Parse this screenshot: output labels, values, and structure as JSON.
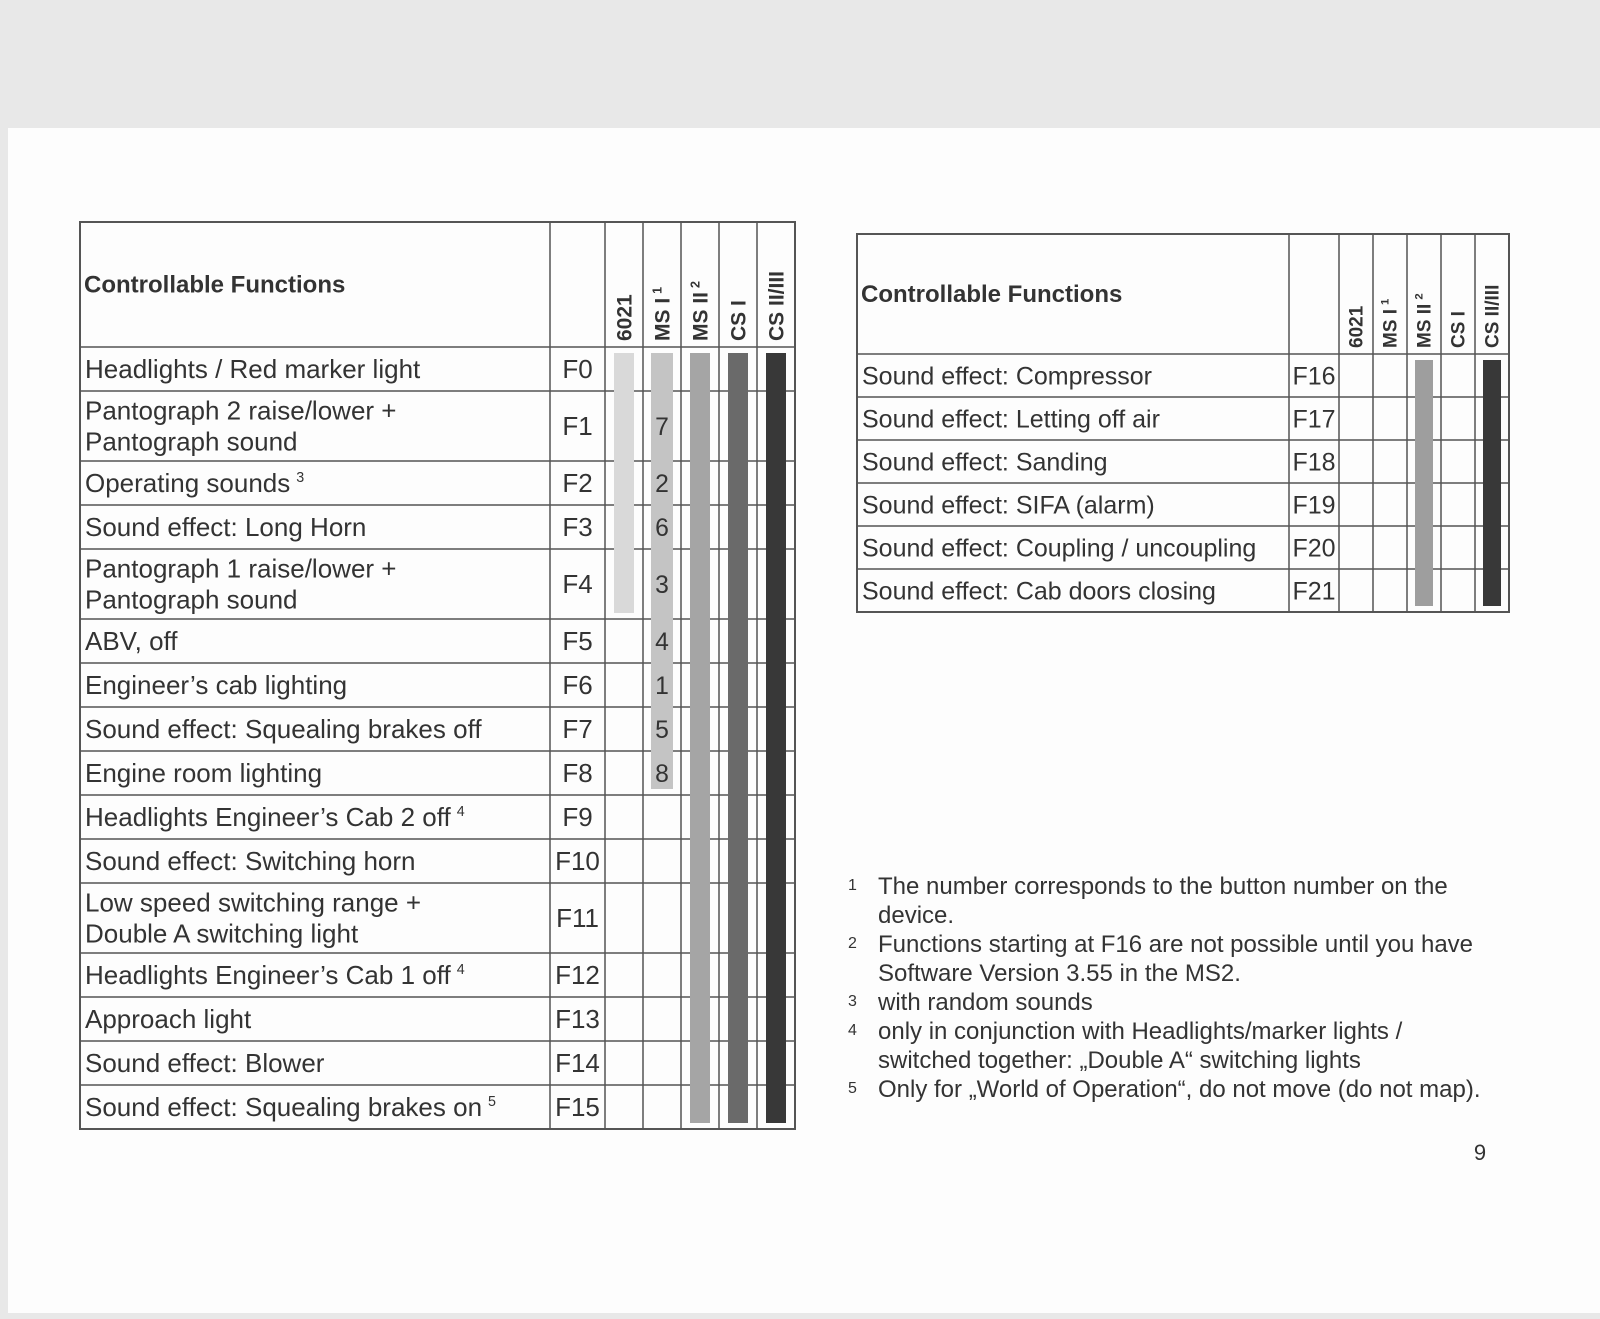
{
  "left_table": {
    "header": "Controllable Functions",
    "columns": [
      {
        "name": "6021"
      },
      {
        "name": "MS I",
        "note": 1
      },
      {
        "name": "MS II",
        "note": 2
      },
      {
        "name": "CS I"
      },
      {
        "name": "CS II/III"
      }
    ],
    "rows": [
      {
        "label": [
          "Headlights / Red marker light"
        ],
        "function": "F0"
      },
      {
        "label": [
          "Pantograph 2 raise/lower +",
          "Pantograph sound"
        ],
        "function": "F1",
        "button": 7
      },
      {
        "label": [
          "Operating sounds"
        ],
        "note": 3,
        "function": "F2",
        "button": 2
      },
      {
        "label": [
          "Sound effect: Long Horn"
        ],
        "function": "F3",
        "button": 6
      },
      {
        "label": [
          "Pantograph 1 raise/lower +",
          "Pantograph sound"
        ],
        "function": "F4",
        "button": 3
      },
      {
        "label": [
          "ABV, off"
        ],
        "function": "F5",
        "button": 4
      },
      {
        "label": [
          "Engineer’s cab lighting"
        ],
        "function": "F6",
        "button": 1
      },
      {
        "label": [
          "Sound effect: Squealing brakes off"
        ],
        "function": "F7",
        "button": 5
      },
      {
        "label": [
          "Engine room lighting"
        ],
        "function": "F8",
        "button": 8
      },
      {
        "label": [
          "Headlights Engineer’s Cab 2 off"
        ],
        "note": 4,
        "function": "F9"
      },
      {
        "label": [
          "Sound effect: Switching horn"
        ],
        "function": "F10"
      },
      {
        "label": [
          "Low speed switching range +",
          "Double A switching light"
        ],
        "function": "F11"
      },
      {
        "label": [
          "Headlights Engineer’s Cab 1 off"
        ],
        "note": 4,
        "function": "F12"
      },
      {
        "label": [
          "Approach light"
        ],
        "function": "F13"
      },
      {
        "label": [
          "Sound effect: Blower"
        ],
        "function": "F14"
      },
      {
        "label": [
          "Sound effect: Squealing brakes on"
        ],
        "note": 5,
        "function": "F15"
      }
    ]
  },
  "right_table": {
    "header": "Controllable Functions",
    "columns": [
      {
        "name": "6021"
      },
      {
        "name": "MS I",
        "note": 1
      },
      {
        "name": "MS II",
        "note": 2
      },
      {
        "name": "CS I"
      },
      {
        "name": "CS II/III"
      }
    ],
    "rows": [
      {
        "label": [
          "Sound effect: Compressor"
        ],
        "function": "F16"
      },
      {
        "label": [
          "Sound effect: Letting off air"
        ],
        "function": "F17"
      },
      {
        "label": [
          "Sound effect: Sanding"
        ],
        "function": "F18"
      },
      {
        "label": [
          "Sound effect: SIFA (alarm)"
        ],
        "function": "F19"
      },
      {
        "label": [
          "Sound effect: Coupling / uncoupling"
        ],
        "function": "F20"
      },
      {
        "label": [
          "Sound effect: Cab doors closing"
        ],
        "function": "F21"
      }
    ]
  },
  "footnotes": [
    {
      "n": 1,
      "text": [
        "The number corresponds to the button number on the",
        "device."
      ]
    },
    {
      "n": 2,
      "text": [
        "Functions starting at F16 are not possible until you have",
        "Software Version 3.55 in the MS2."
      ]
    },
    {
      "n": 3,
      "text": [
        "with random sounds"
      ]
    },
    {
      "n": 4,
      "text": [
        "only in conjunction with Headlights/marker lights /",
        "switched together: „Double A“ switching lights"
      ]
    },
    {
      "n": 5,
      "text": [
        "Only for „World of Operation“, do not move (do not map)."
      ]
    }
  ],
  "page_number": 9
}
